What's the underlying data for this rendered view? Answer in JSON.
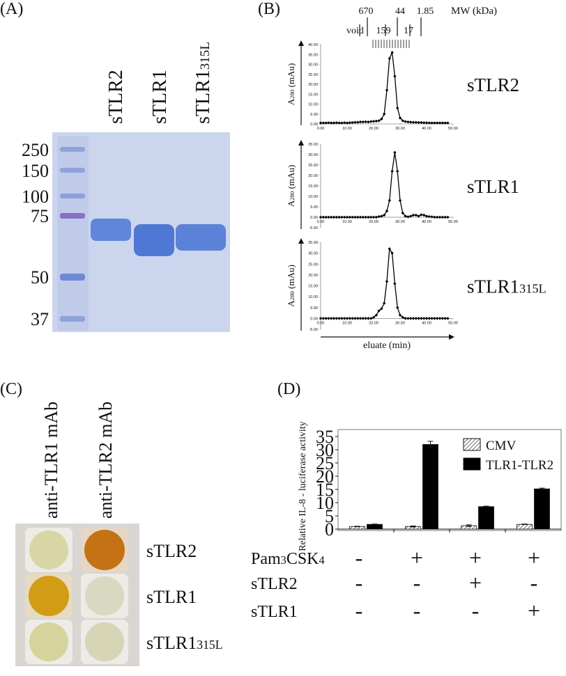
{
  "panel_a": {
    "label": "(A)",
    "lanes": [
      "sTLR2",
      "sTLR1",
      [
        "sTLR1",
        "315L"
      ]
    ],
    "markers": [
      "250",
      "150",
      "100",
      "75",
      "50",
      "37"
    ]
  },
  "panel_b": {
    "label": "(B)",
    "mw_title": "MW (kDa)",
    "void": "void",
    "mw_markers": [
      "670",
      "159",
      "44",
      "17",
      "1.85"
    ],
    "xlabel": "eluate (min)"
  },
  "panel_c": {
    "label": "(C)",
    "columns": [
      "anti-TLR1 mAb",
      "anti-TLR2 mAb"
    ],
    "rows": [
      "sTLR2",
      "sTLR1",
      [
        "sTLR1",
        "315L"
      ]
    ]
  },
  "panel_d": {
    "label": "(D)",
    "treatments": [
      {
        "label": [
          "Pam",
          "3",
          "CSK",
          "4"
        ],
        "marks": [
          "-",
          "+",
          "+",
          "+"
        ]
      },
      {
        "label": [
          "sTLR2"
        ],
        "marks": [
          "-",
          "-",
          "+",
          "-"
        ]
      },
      {
        "label": [
          "sTLR1"
        ],
        "marks": [
          "-",
          "-",
          "-",
          "+"
        ]
      }
    ]
  },
  "chart_data": [
    {
      "type": "line",
      "label": [
        "sTLR2"
      ],
      "ylabel": [
        "A",
        "280",
        " (mAu)"
      ],
      "color": "#000000",
      "marker": "diamond",
      "x": [
        0,
        1,
        2,
        3,
        4,
        5,
        6,
        7,
        8,
        9,
        10,
        11,
        12,
        13,
        14,
        15,
        16,
        17,
        18,
        19,
        20,
        21,
        22,
        23,
        24,
        25,
        26,
        27,
        28,
        29,
        30,
        31,
        32,
        33,
        34,
        35,
        36,
        37,
        38,
        39,
        40,
        41,
        42,
        43,
        44,
        45,
        46,
        47,
        48
      ],
      "values": [
        0.5,
        0.5,
        0.5,
        0.6,
        0.5,
        0.5,
        0.6,
        0.5,
        0.5,
        0.6,
        0.5,
        0.6,
        0.7,
        0.8,
        0.8,
        1,
        1,
        1.1,
        1,
        1.2,
        1.3,
        1.4,
        1.6,
        2.5,
        5,
        17,
        33,
        36,
        24,
        8,
        3,
        1.6,
        1.2,
        1,
        0.9,
        0.8,
        0.8,
        0.7,
        0.7,
        0.6,
        0.6,
        0.5,
        0.5,
        0.5,
        0.5,
        0.5,
        0.5,
        0.5,
        0.5
      ],
      "xlim": [
        0,
        50
      ],
      "xticks": [
        {
          "value": 0,
          "label": "0.00"
        },
        {
          "value": 10,
          "label": "10.00"
        },
        {
          "value": 20,
          "label": "20.00"
        },
        {
          "value": 30,
          "label": "30.00"
        },
        {
          "value": 40,
          "label": "40.00"
        },
        {
          "value": 50,
          "label": "50.00"
        }
      ],
      "ylim": [
        0,
        40
      ],
      "yticks": [
        {
          "value": 0,
          "label": "0.00"
        },
        {
          "value": 5,
          "label": "5.00"
        },
        {
          "value": 10,
          "label": "10.00"
        },
        {
          "value": 15,
          "label": "15.00"
        },
        {
          "value": 20,
          "label": "20.00"
        },
        {
          "value": 25,
          "label": "25.00"
        },
        {
          "value": 30,
          "label": "30.00"
        },
        {
          "value": 35,
          "label": "35.00"
        },
        {
          "value": 40,
          "label": "40.00"
        }
      ]
    },
    {
      "type": "line",
      "label": [
        "sTLR1"
      ],
      "ylabel": [
        "A",
        "280",
        " (mAu)"
      ],
      "color": "#000000",
      "marker": "diamond",
      "x": [
        0,
        1,
        2,
        3,
        4,
        5,
        6,
        7,
        8,
        9,
        10,
        11,
        12,
        13,
        14,
        15,
        16,
        17,
        18,
        19,
        20,
        21,
        22,
        23,
        24,
        25,
        26,
        27,
        28,
        29,
        30,
        31,
        32,
        33,
        34,
        35,
        36,
        37,
        38,
        39,
        40,
        41,
        42,
        43,
        44,
        45,
        46,
        47,
        48
      ],
      "values": [
        0,
        0,
        0,
        0,
        0,
        0,
        0,
        0,
        0,
        0,
        0,
        0,
        0,
        0,
        0,
        0,
        0,
        0,
        0,
        0,
        0,
        0,
        0.3,
        0.5,
        1,
        3,
        8,
        22,
        31,
        22,
        8,
        2,
        0.5,
        0.2,
        0.5,
        1,
        1,
        0.5,
        1.2,
        1,
        0.5,
        0.3,
        0.2,
        0,
        0,
        0,
        0,
        0,
        0
      ],
      "xlim": [
        0,
        50
      ],
      "xticks": [
        {
          "value": 0,
          "label": "0.00"
        },
        {
          "value": 10,
          "label": "10.00"
        },
        {
          "value": 20,
          "label": "20.00"
        },
        {
          "value": 30,
          "label": "30.00"
        },
        {
          "value": 40,
          "label": "40.00"
        },
        {
          "value": 50,
          "label": "50.00"
        }
      ],
      "ylim": [
        -5,
        35
      ],
      "yticks": [
        {
          "value": -5,
          "label": "-5.00"
        },
        {
          "value": 0,
          "label": "0.00"
        },
        {
          "value": 5,
          "label": "5.00"
        },
        {
          "value": 10,
          "label": "10.00"
        },
        {
          "value": 15,
          "label": "15.00"
        },
        {
          "value": 20,
          "label": "20.00"
        },
        {
          "value": 25,
          "label": "25.00"
        },
        {
          "value": 30,
          "label": "30.00"
        },
        {
          "value": 35,
          "label": "35.00"
        }
      ]
    },
    {
      "type": "line",
      "label": [
        "sTLR1",
        "315L"
      ],
      "ylabel": [
        "A",
        "280",
        " (mAu)"
      ],
      "color": "#000000",
      "marker": "diamond",
      "x": [
        0,
        1,
        2,
        3,
        4,
        5,
        6,
        7,
        8,
        9,
        10,
        11,
        12,
        13,
        14,
        15,
        16,
        17,
        18,
        19,
        20,
        21,
        22,
        23,
        24,
        25,
        26,
        27,
        28,
        29,
        30,
        31,
        32,
        33,
        34,
        35,
        36,
        37,
        38,
        39,
        40,
        41,
        42,
        43,
        44,
        45,
        46,
        47,
        48
      ],
      "values": [
        0,
        0,
        0,
        0,
        0,
        0,
        0,
        0,
        0,
        0,
        0,
        0,
        0,
        0,
        0,
        0,
        0,
        0,
        0,
        0,
        0.5,
        1.5,
        3.5,
        4.5,
        7,
        17,
        32,
        30,
        16,
        5,
        1.5,
        0.5,
        0,
        0,
        0,
        0,
        0,
        0,
        0,
        0,
        0,
        0,
        0,
        0,
        0,
        0,
        0,
        0,
        0
      ],
      "xlim": [
        0,
        50
      ],
      "xticks": [
        {
          "value": 0,
          "label": "0.00"
        },
        {
          "value": 10,
          "label": "10.00"
        },
        {
          "value": 20,
          "label": "20.00"
        },
        {
          "value": 30,
          "label": "30.00"
        },
        {
          "value": 40,
          "label": "40.00"
        },
        {
          "value": 50,
          "label": "50.00"
        }
      ],
      "ylim": [
        -5,
        35
      ],
      "yticks": [
        {
          "value": -5,
          "label": "-5.00"
        },
        {
          "value": 0,
          "label": "0.00"
        },
        {
          "value": 5,
          "label": "5.00"
        },
        {
          "value": 10,
          "label": "10.00"
        },
        {
          "value": 15,
          "label": "15.00"
        },
        {
          "value": 20,
          "label": "20.00"
        },
        {
          "value": 25,
          "label": "25.00"
        },
        {
          "value": 30,
          "label": "30.00"
        },
        {
          "value": 35,
          "label": "35.00"
        }
      ]
    },
    {
      "type": "bar",
      "ylabel": "Relative IL-8 - luciferase activity",
      "categories": [
        null,
        null,
        null,
        null
      ],
      "series": [
        {
          "name": "CMV",
          "color": "#ffffff",
          "hatch": true,
          "values": [
            1,
            1,
            1.3,
            1.8
          ],
          "errors": [
            0.1,
            0.2,
            0.3,
            0.1
          ]
        },
        {
          "name": "TLR1-TLR2",
          "color": "#000000",
          "hatch": false,
          "values": [
            1.8,
            32,
            8.5,
            15.2
          ],
          "errors": [
            0.1,
            1.2,
            0.2,
            0.3
          ]
        }
      ],
      "ylim": [
        0,
        35
      ],
      "yticks": [
        0,
        5,
        10,
        15,
        20,
        25,
        30,
        35
      ],
      "legend": "upper right"
    }
  ]
}
